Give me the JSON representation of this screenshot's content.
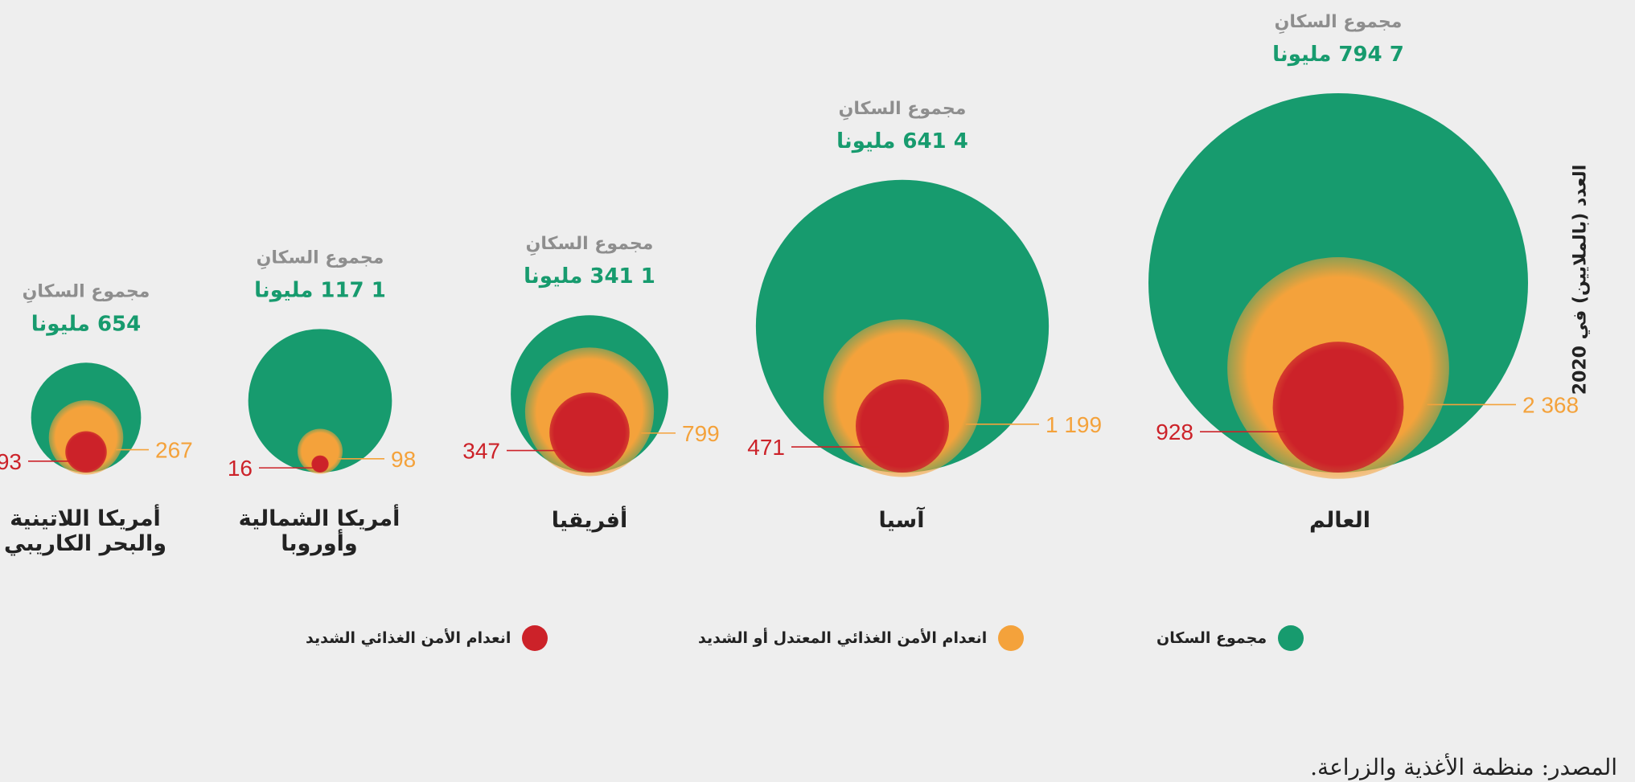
{
  "axis_title": "العدد (بالملايين) في 2020",
  "source": "المصدر: منظمة الأغذية والزراعة.",
  "colors": {
    "population": "#179b6e",
    "moderate": "#f4a23b",
    "severe": "#cc2229",
    "total_label": "#8e8e8e",
    "total_value": "#179b6e"
  },
  "legend": [
    {
      "label": "مجموع السكان",
      "color": "#179b6e"
    },
    {
      "label": "انعدام الأمن الغذائي المعتدل أو الشديد",
      "color": "#f4a23b"
    },
    {
      "label": "انعدام الأمن الغذائي الشديد",
      "color": "#cc2229"
    }
  ],
  "chart_data": {
    "type": "nested-bubble",
    "year": 2020,
    "unit": "مليونا",
    "total_caption": "مجموع السكانِ",
    "series": [
      {
        "name": "مجموع السكان",
        "color": "#179b6e"
      },
      {
        "name": "انعدام الأمن الغذائي المعتدل أو الشديد",
        "color": "#f4a23b"
      },
      {
        "name": "انعدام الأمن الغذائي الشديد",
        "color": "#cc2229"
      }
    ],
    "regions": [
      {
        "name": "العالم",
        "population": 7794,
        "population_text": "7 794",
        "moderate_or_severe": 2368,
        "moderate_text": "2 368",
        "severe": 928,
        "severe_text": "928"
      },
      {
        "name": "آسيا",
        "population": 4641,
        "population_text": "4 641",
        "moderate_or_severe": 1199,
        "moderate_text": "1 199",
        "severe": 471,
        "severe_text": "471"
      },
      {
        "name": "أفريقيا",
        "population": 1341,
        "population_text": "1 341",
        "moderate_or_severe": 799,
        "moderate_text": "799",
        "severe": 347,
        "severe_text": "347"
      },
      {
        "name": "أمريكا الشمالية وأوروبا",
        "population": 1117,
        "population_text": "1 117",
        "moderate_or_severe": 98,
        "moderate_text": "98",
        "severe": 16,
        "severe_text": "16"
      },
      {
        "name": "أمريكا اللاتينية والبحر الكاريبي",
        "population": 654,
        "population_text": "654",
        "moderate_or_severe": 267,
        "moderate_text": "267",
        "severe": 93,
        "severe_text": "93"
      }
    ]
  }
}
